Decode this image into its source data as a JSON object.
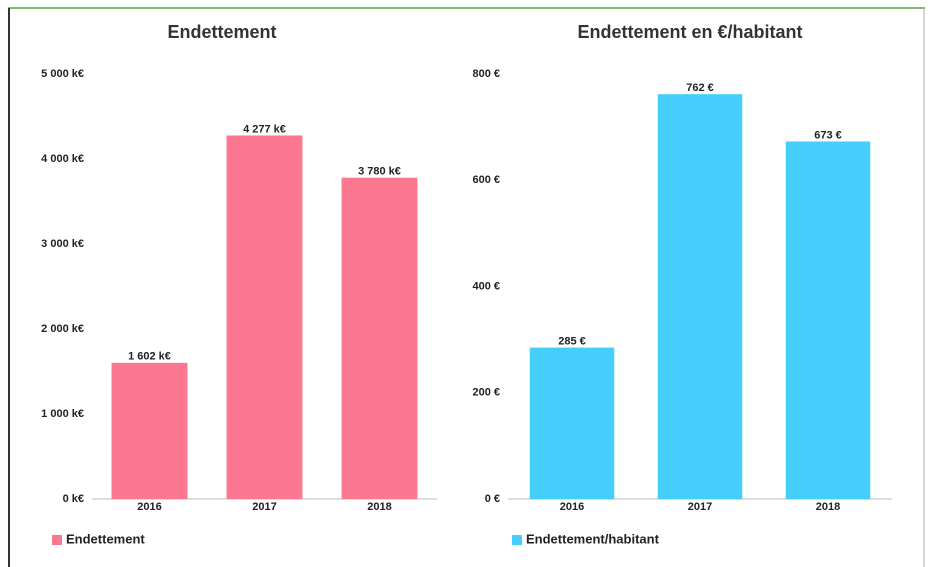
{
  "chart_data": [
    {
      "type": "bar",
      "title": "Endettement",
      "categories": [
        "2016",
        "2017",
        "2018"
      ],
      "series": [
        {
          "name": "Endettement",
          "color": "#fb7890",
          "values": [
            1602,
            4277,
            3780
          ],
          "value_labels": [
            "1 602 k€",
            "4 277 k€",
            "3 780 k€"
          ]
        }
      ],
      "ylim": [
        0,
        5000
      ],
      "yticks": [
        {
          "value": 0,
          "label": "0 k€"
        },
        {
          "value": 1000,
          "label": "1 000 k€"
        },
        {
          "value": 2000,
          "label": "2 000 k€"
        },
        {
          "value": 3000,
          "label": "3 000 k€"
        },
        {
          "value": 4000,
          "label": "4 000 k€"
        },
        {
          "value": 5000,
          "label": "5 000 k€"
        }
      ],
      "grid": false,
      "legend": "bottom-left"
    },
    {
      "type": "bar",
      "title": "Endettement en €/habitant",
      "categories": [
        "2016",
        "2017",
        "2018"
      ],
      "series": [
        {
          "name": "Endettement/habitant",
          "color": "#45cdfc",
          "values": [
            285,
            762,
            673
          ],
          "value_labels": [
            "285 €",
            "762 €",
            "673 €"
          ]
        }
      ],
      "ylim": [
        0,
        800
      ],
      "yticks": [
        {
          "value": 0,
          "label": "0 €"
        },
        {
          "value": 200,
          "label": "200 €"
        },
        {
          "value": 400,
          "label": "400 €"
        },
        {
          "value": 600,
          "label": "600 €"
        },
        {
          "value": 800,
          "label": "800 €"
        }
      ],
      "grid": false,
      "legend": "bottom-left"
    }
  ]
}
